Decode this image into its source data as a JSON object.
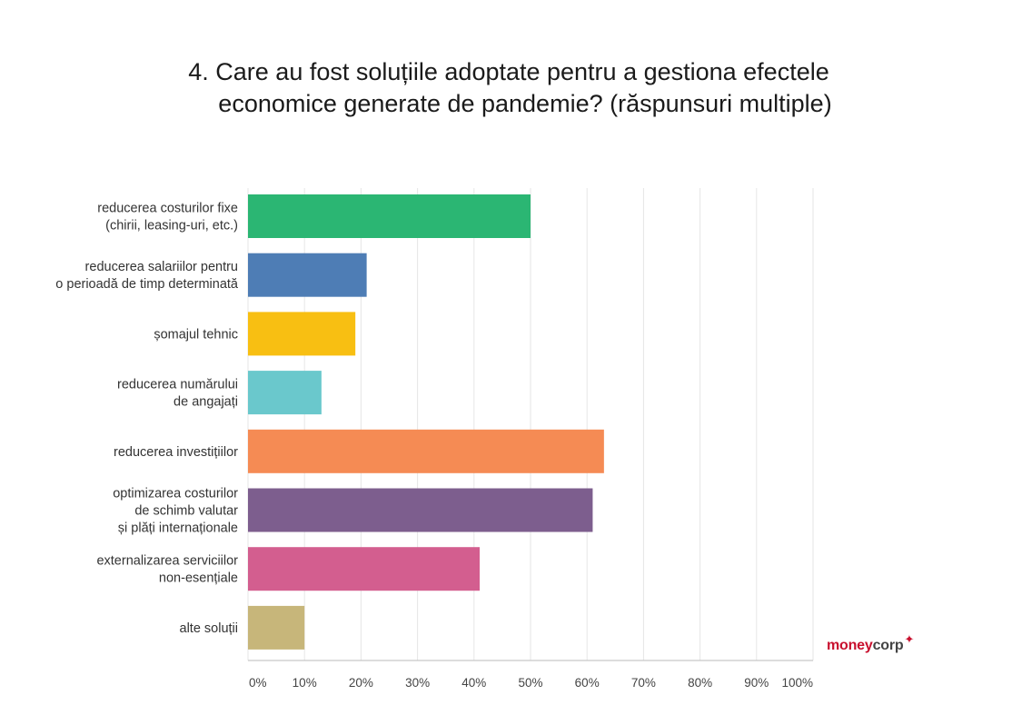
{
  "chart_data": {
    "type": "bar",
    "orientation": "horizontal",
    "title_lines": [
      "4. Care au fost soluțiile adoptate pentru a gestiona efectele",
      "economice generate de pandemie? (răspunsuri multiple)"
    ],
    "categories": [
      [
        "reducerea costurilor fixe",
        "(chirii, leasing-uri, etc.)"
      ],
      [
        "reducerea salariilor pentru",
        "o perioadă de timp determinată"
      ],
      [
        "șomajul tehnic"
      ],
      [
        "reducerea numărului",
        "de angajați"
      ],
      [
        "reducerea investițiilor"
      ],
      [
        "optimizarea costurilor",
        "de schimb valutar",
        "și plăți internaționale"
      ],
      [
        "externalizarea serviciilor",
        "non-esențiale"
      ],
      [
        "alte soluții"
      ]
    ],
    "values": [
      50,
      21,
      19,
      13,
      63,
      61,
      41,
      10
    ],
    "colors": [
      "#2bb673",
      "#4e7db5",
      "#f8bf12",
      "#6ac8cc",
      "#f58b54",
      "#7d5e8e",
      "#d35e8f",
      "#c7b67a"
    ],
    "x_ticks": [
      "0%",
      "10%",
      "20%",
      "30%",
      "40%",
      "50%",
      "60%",
      "70%",
      "80%",
      "90%",
      "100%"
    ],
    "xlim": [
      0,
      100
    ],
    "grid": true
  },
  "brand": {
    "name_part1": "money",
    "name_part2": "corp",
    "star": "✦",
    "color": "#c8102e"
  }
}
